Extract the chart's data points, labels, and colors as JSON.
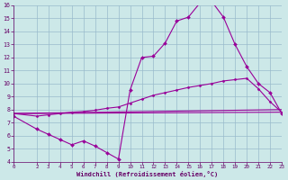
{
  "bg_color": "#cce8e8",
  "grid_color": "#99bbcc",
  "line_color": "#990099",
  "xlabel": "Windchill (Refroidissement éolien,°C)",
  "xlim": [
    0,
    23
  ],
  "ylim": [
    4,
    16
  ],
  "yticks": [
    4,
    5,
    6,
    7,
    8,
    9,
    10,
    11,
    12,
    13,
    14,
    15,
    16
  ],
  "xticks": [
    0,
    2,
    3,
    4,
    5,
    6,
    7,
    8,
    9,
    10,
    11,
    12,
    13,
    14,
    15,
    16,
    17,
    18,
    19,
    20,
    21,
    22,
    23
  ],
  "line1_x": [
    0,
    2,
    3,
    4,
    5,
    6,
    7,
    8,
    9,
    10,
    11,
    12,
    13,
    14,
    15,
    16,
    17,
    18,
    19,
    20,
    21,
    22,
    23
  ],
  "line1_y": [
    7.5,
    6.5,
    6.1,
    5.7,
    5.3,
    5.6,
    5.2,
    4.7,
    4.2,
    9.5,
    12.0,
    12.1,
    13.1,
    14.8,
    15.1,
    16.2,
    16.3,
    15.1,
    13.0,
    11.3,
    10.0,
    9.3,
    7.7
  ],
  "line2_x": [
    0,
    2,
    3,
    4,
    5,
    6,
    7,
    8,
    9,
    10,
    11,
    12,
    13,
    14,
    15,
    16,
    17,
    18,
    19,
    20,
    21,
    22,
    23
  ],
  "line2_y": [
    7.7,
    7.5,
    7.6,
    7.7,
    7.8,
    7.85,
    7.95,
    8.1,
    8.2,
    8.5,
    8.8,
    9.1,
    9.3,
    9.5,
    9.7,
    9.85,
    10.0,
    10.2,
    10.3,
    10.4,
    9.6,
    8.6,
    7.8
  ],
  "line3_x": [
    0,
    23
  ],
  "line3_y": [
    7.7,
    7.8
  ],
  "line4_x": [
    0,
    23
  ],
  "line4_y": [
    7.7,
    8.0
  ]
}
